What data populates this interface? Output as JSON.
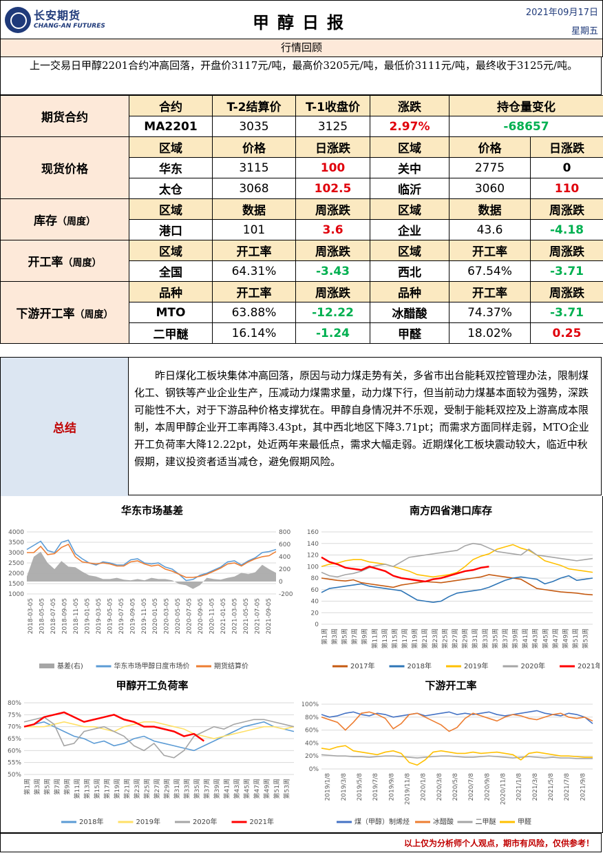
{
  "header": {
    "logo_cn": "长安期货",
    "logo_en": "CHANG-AN FUTURES",
    "title": "甲醇日报",
    "date": "2021年09月17日",
    "weekday": "星期五"
  },
  "review": {
    "heading": "行情回顾",
    "text": "上一交易日甲醇2201合约冲高回落，开盘价3117元/吨，最高价3205元/吨，最低价3111元/吨，最终收于3125元/吨。"
  },
  "futures": {
    "section": "期货合约",
    "headers": [
      "合约",
      "T-2结算价",
      "T-1收盘价",
      "涨跌",
      "持仓量变化"
    ],
    "row": [
      "MA2201",
      "3035",
      "3125",
      "2.97%",
      "-68657"
    ]
  },
  "spot": {
    "section": "现货价格",
    "headers": [
      "区域",
      "价格",
      "日涨跌",
      "区域",
      "价格",
      "日涨跌"
    ],
    "rows": [
      [
        "华东",
        "3115",
        "100",
        "关中",
        "2775",
        "0"
      ],
      [
        "太仓",
        "3068",
        "102.5",
        "临沂",
        "3060",
        "110"
      ]
    ]
  },
  "inventory": {
    "section": "库存",
    "suffix": "（周度）",
    "headers": [
      "区域",
      "数据",
      "周涨跌",
      "区域",
      "数据",
      "周涨跌"
    ],
    "row": [
      "港口",
      "101",
      "3.6",
      "企业",
      "43.6",
      "-4.18"
    ]
  },
  "operating": {
    "section": "开工率",
    "suffix": "（周度）",
    "headers": [
      "区域",
      "开工率",
      "周涨跌",
      "区域",
      "开工率",
      "周涨跌"
    ],
    "row": [
      "全国",
      "64.31%",
      "-3.43",
      "西北",
      "67.54%",
      "-3.71"
    ]
  },
  "downstream": {
    "section": "下游开工率",
    "suffix": "（周度）",
    "headers": [
      "品种",
      "开工率",
      "周涨跌",
      "品种",
      "开工率",
      "周涨跌"
    ],
    "rows": [
      [
        "MTO",
        "63.88%",
        "-12.22",
        "冰醋酸",
        "74.37%",
        "-3.71"
      ],
      [
        "二甲醚",
        "16.14%",
        "-1.24",
        "甲醛",
        "18.02%",
        "0.25"
      ]
    ]
  },
  "summary": {
    "label": "总结",
    "text": "昨日煤化工板块集体冲高回落，原因与动力煤走势有关，多省市出台能耗双控管理办法，限制煤化工、钢铁等产业企业生产，压减动力煤需求量，动力煤下行，但当前动力煤基本面较为强势，深跌可能性不大，对于下游品种价格支撑犹在。甲醇自身情况并不乐观，受制于能耗双控及上游高成本限制，本周甲醇企业开工率再降3.43pt，其中西北地区下降3.71pt；而需求方面同样走弱，MTO企业开工负荷率大降12.22pt，处近两年来最低点，需求大幅走弱。近期煤化工板块震动较大，临近中秋假期，建议投资者适当减仓，避免假期风险。"
  },
  "footer": "以上仅为分析师个人观点，期市有风险，仅供参考！",
  "chart_data": [
    {
      "type": "line",
      "title": "华东市场基差",
      "ylim": [
        1000,
        4000
      ],
      "y2lim": [
        -200,
        800
      ],
      "yticks": [
        "4000",
        "3500",
        "3000",
        "2500",
        "2000",
        "1500",
        "1000"
      ],
      "y2ticks": [
        "800",
        "600",
        "400",
        "200",
        "0",
        "-200"
      ],
      "xticks": [
        "2018-03-05",
        "2018-05-05",
        "2018-07-05",
        "2018-09-05",
        "2018-11-05",
        "2019-01-05",
        "2019-03-05",
        "2019-05-05",
        "2019-07-05",
        "2019-09-05",
        "2019-11-05",
        "2020-01-05",
        "2020-03-05",
        "2020-05-05",
        "2020-07-05",
        "2020-09-05",
        "2020-11-05",
        "2021-01-05",
        "2021-03-05",
        "2021-05-05",
        "2021-07-05",
        "2021-09-05"
      ],
      "series": [
        {
          "name": "基差(右)",
          "color": "#a6a6a6",
          "values": [
            80,
            400,
            480,
            300,
            200,
            330,
            240,
            230,
            160,
            100,
            80,
            40,
            40,
            60,
            30,
            20,
            40,
            20,
            60,
            40,
            40,
            20,
            -40,
            -60,
            -120,
            -60,
            60,
            40,
            30,
            60,
            80,
            140,
            120,
            150,
            270,
            200,
            140
          ]
        },
        {
          "name": "华东市场甲醇日度市场价",
          "color": "#5b9bd5",
          "values": [
            3150,
            3350,
            3550,
            3100,
            3000,
            3500,
            3600,
            2950,
            2700,
            2500,
            2400,
            2550,
            2500,
            2400,
            2400,
            2650,
            2700,
            2500,
            2450,
            2500,
            2300,
            2200,
            1950,
            1650,
            1700,
            1900,
            2000,
            2150,
            2300,
            2550,
            2600,
            2400,
            2600,
            2750,
            3000,
            3050,
            3150
          ]
        },
        {
          "name": "期货结算价",
          "color": "#ed7d31",
          "values": [
            3000,
            3000,
            3300,
            2900,
            2950,
            3250,
            3400,
            2800,
            2550,
            2500,
            2450,
            2500,
            2450,
            2350,
            2350,
            2550,
            2600,
            2450,
            2350,
            2400,
            2200,
            2100,
            1950,
            1800,
            1800,
            1850,
            1950,
            2100,
            2250,
            2450,
            2500,
            2350,
            2550,
            2700,
            2800,
            2850,
            3050
          ]
        }
      ]
    },
    {
      "type": "line",
      "title": "南方四省港口库存",
      "ylim": [
        0,
        160
      ],
      "yticks": [
        "160",
        "140",
        "120",
        "100",
        "80",
        "60",
        "40",
        "20",
        "0"
      ],
      "xticks": [
        "第1周",
        "第3周",
        "第5周",
        "第7周",
        "第9周",
        "第11周",
        "第13周",
        "第15周",
        "第17周",
        "第19周",
        "第21周",
        "第23周",
        "第25周",
        "第27周",
        "第29周",
        "第31周",
        "第33周",
        "第35周",
        "第37周",
        "第39周",
        "第41周",
        "第43周",
        "第45周",
        "第47周",
        "第49周",
        "第51周",
        "第53周"
      ],
      "series": [
        {
          "name": "2017年",
          "color": "#c55a11",
          "values": [
            80,
            78,
            76,
            75,
            77,
            72,
            70,
            68,
            66,
            64,
            68,
            70,
            72,
            74,
            73,
            72,
            74,
            76,
            78,
            80,
            82,
            86,
            84,
            82,
            80,
            78,
            70,
            62,
            60,
            58,
            56,
            55,
            54,
            52,
            51
          ]
        },
        {
          "name": "2018年",
          "color": "#2e75b6",
          "values": [
            55,
            62,
            64,
            66,
            68,
            70,
            66,
            64,
            62,
            60,
            58,
            50,
            42,
            40,
            38,
            40,
            48,
            54,
            56,
            58,
            60,
            64,
            70,
            76,
            80,
            82,
            80,
            78,
            70,
            74,
            80,
            84,
            76,
            78,
            80
          ]
        },
        {
          "name": "2019年",
          "color": "#ffc000",
          "values": [
            100,
            104,
            106,
            110,
            112,
            112,
            108,
            106,
            104,
            100,
            96,
            92,
            86,
            84,
            82,
            84,
            86,
            90,
            100,
            112,
            118,
            122,
            130,
            134,
            138,
            132,
            128,
            120,
            110,
            106,
            102,
            96,
            94,
            92,
            90
          ]
        },
        {
          "name": "2020年",
          "color": "#a5a5a5",
          "values": [
            90,
            84,
            82,
            86,
            88,
            92,
            98,
            102,
            104,
            100,
            108,
            116,
            118,
            120,
            122,
            124,
            126,
            128,
            136,
            140,
            138,
            132,
            126,
            124,
            122,
            120,
            130,
            120,
            118,
            116,
            114,
            112,
            110,
            112,
            114
          ]
        },
        {
          "name": "2021年",
          "color": "#ff0000",
          "values": [
            116,
            108,
            104,
            98,
            96,
            94,
            100,
            96,
            92,
            84,
            80,
            78,
            76,
            74,
            78,
            80,
            84,
            88,
            92,
            94,
            98,
            100
          ]
        }
      ]
    },
    {
      "type": "line",
      "title": "甲醇开工负荷率",
      "ylim": [
        50,
        80
      ],
      "yticks": [
        "80%",
        "75%",
        "70%",
        "65%",
        "60%",
        "55%",
        "50%"
      ],
      "xticks": [
        "第1周",
        "第3周",
        "第5周",
        "第7周",
        "第9周",
        "第11周",
        "第13周",
        "第15周",
        "第17周",
        "第19周",
        "第21周",
        "第23周",
        "第25周",
        "第27周",
        "第29周",
        "第31周",
        "第33周",
        "第35周",
        "第37周",
        "第39周",
        "第41周",
        "第43周",
        "第45周",
        "第47周",
        "第49周",
        "第51周",
        "第53周"
      ],
      "series": [
        {
          "name": "2018年",
          "color": "#5b9bd5",
          "values": [
            70,
            71,
            72,
            70,
            68,
            66,
            65,
            63,
            64,
            62,
            63,
            65,
            66,
            64,
            63,
            62,
            61,
            60,
            62,
            64,
            66,
            68,
            70,
            71,
            72,
            70,
            69,
            68
          ]
        },
        {
          "name": "2019年",
          "color": "#ffe066",
          "values": [
            70,
            70,
            70,
            71,
            72,
            71,
            70,
            70,
            69,
            68,
            70,
            71,
            72,
            72,
            71,
            70,
            69,
            67,
            66,
            65,
            66,
            67,
            68,
            69,
            70,
            70,
            69,
            70
          ]
        },
        {
          "name": "2020年",
          "color": "#a5a5a5",
          "values": [
            72,
            73,
            74,
            71,
            62,
            63,
            68,
            69,
            70,
            68,
            66,
            62,
            60,
            63,
            58,
            57,
            60,
            66,
            68,
            70,
            69,
            71,
            72,
            73,
            73,
            72,
            71,
            70
          ]
        },
        {
          "name": "2021年",
          "color": "#ff0000",
          "values": [
            70,
            71,
            74,
            75,
            76,
            74,
            72,
            73,
            74,
            75,
            73,
            72,
            70,
            70,
            69,
            68,
            66,
            67,
            64
          ]
        }
      ]
    },
    {
      "type": "line",
      "title": "下游开工率",
      "ylim": [
        0,
        100
      ],
      "yticks": [
        "100%",
        "80%",
        "60%",
        "40%",
        "20%",
        "0%"
      ],
      "xticks": [
        "2019/1/8",
        "2019/3/8",
        "2019/5/8",
        "2019/7/8",
        "2019/9/8",
        "2019/11/8",
        "2020/1/8",
        "2020/3/8",
        "2020/5/8",
        "2020/7/8",
        "2020/9/8",
        "2020/11/8",
        "2021/1/8",
        "2021/3/8",
        "2021/5/8",
        "2021/7/8",
        "2021/9/8"
      ],
      "series": [
        {
          "name": "煤（甲醇）制烯烃",
          "color": "#4472c4",
          "values": [
            84,
            80,
            82,
            86,
            88,
            84,
            82,
            86,
            84,
            80,
            82,
            84,
            86,
            82,
            84,
            86,
            88,
            84,
            86,
            84,
            86,
            88,
            84,
            82,
            84,
            86,
            88,
            90,
            86,
            84,
            82,
            86,
            84,
            80,
            70
          ]
        },
        {
          "name": "冰醋酸",
          "color": "#ed7d31",
          "values": [
            80,
            76,
            72,
            60,
            72,
            86,
            88,
            84,
            78,
            62,
            70,
            84,
            86,
            80,
            74,
            68,
            58,
            64,
            78,
            86,
            82,
            78,
            74,
            80,
            84,
            82,
            78,
            76,
            80,
            84,
            86,
            80,
            78,
            80,
            74
          ]
        },
        {
          "name": "二甲醚",
          "color": "#a5a5a5",
          "values": [
            22,
            21,
            20,
            20,
            19,
            19,
            18,
            19,
            20,
            20,
            19,
            18,
            17,
            18,
            19,
            20,
            20,
            19,
            18,
            18,
            19,
            20,
            19,
            18,
            17,
            18,
            19,
            18,
            17,
            18,
            17,
            17,
            16,
            16,
            16
          ]
        },
        {
          "name": "甲醛",
          "color": "#ffc000",
          "values": [
            32,
            30,
            34,
            36,
            28,
            26,
            24,
            22,
            26,
            28,
            24,
            10,
            6,
            14,
            26,
            28,
            26,
            24,
            24,
            26,
            24,
            25,
            26,
            24,
            22,
            14,
            24,
            26,
            24,
            22,
            20,
            20,
            19,
            18,
            18
          ]
        }
      ]
    }
  ]
}
